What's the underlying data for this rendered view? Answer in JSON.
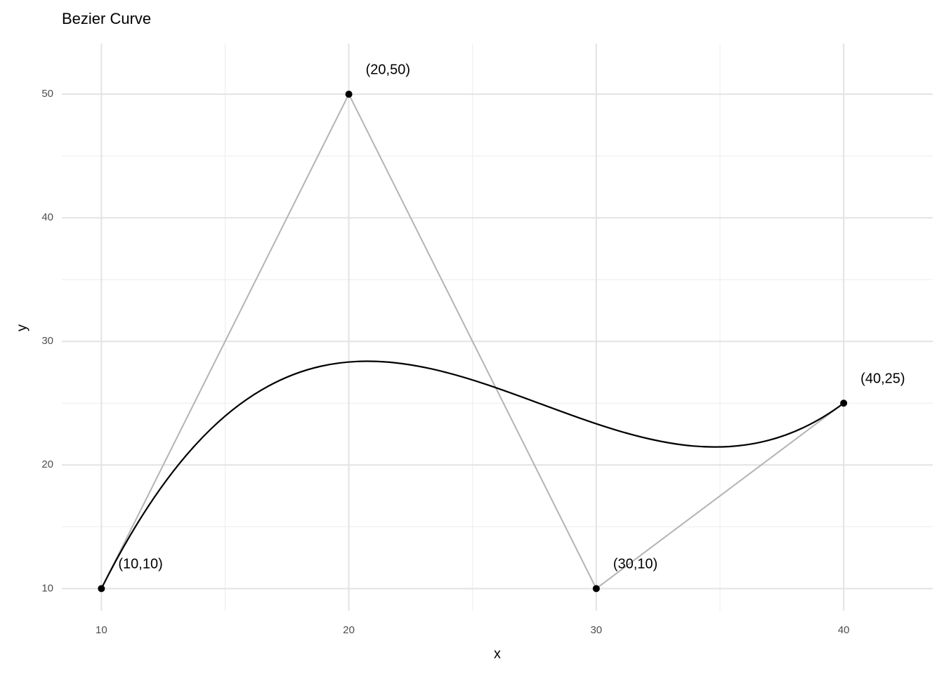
{
  "chart_data": {
    "type": "bezier",
    "title": "Bezier Curve",
    "xlabel": "x",
    "ylabel": "y",
    "x": [
      10,
      20,
      30,
      40
    ],
    "values": [
      10,
      50,
      10,
      25
    ],
    "point_labels": [
      "(10,10)",
      "(20,50)",
      "(30,10)",
      "(40,25)"
    ],
    "point_color": "#000000",
    "polygon_color": "#b3b3b3",
    "curve_color": "#000000",
    "xlim": [
      8.4,
      43.6
    ],
    "ylim": [
      8.2,
      54.1
    ],
    "xticks": [
      10,
      20,
      30,
      40
    ],
    "yticks": [
      10,
      20,
      30,
      40,
      50
    ],
    "x_minor_ticks": [
      15,
      25,
      35
    ],
    "y_minor_ticks": [
      15,
      25,
      35,
      45
    ],
    "grid": true
  }
}
